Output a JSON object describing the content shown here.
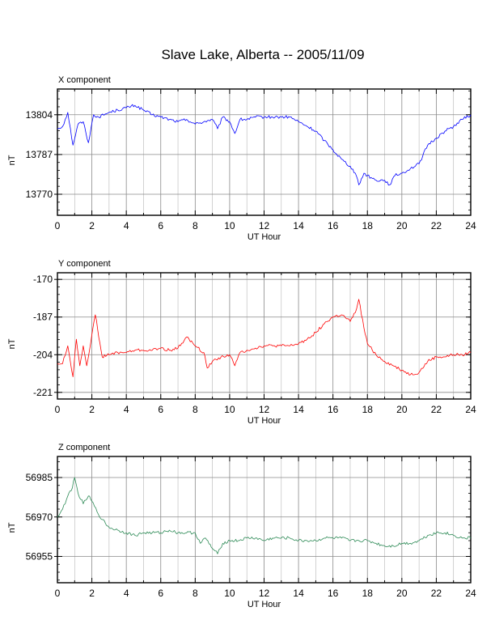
{
  "title": "Slave Lake, Alberta -- 2005/11/09",
  "chart_data": [
    {
      "type": "line",
      "panel_title": "X component",
      "xlabel": "UT Hour",
      "ylabel": "nT",
      "xlim": [
        0,
        24
      ],
      "ylim": [
        13761,
        13815
      ],
      "xticks": [
        0,
        2,
        4,
        6,
        8,
        10,
        12,
        14,
        16,
        18,
        20,
        22,
        24
      ],
      "yticks": [
        13770,
        13787,
        13804
      ],
      "grid": true,
      "color": "#0000ff",
      "x": [
        0,
        0.3,
        0.6,
        0.9,
        1.2,
        1.5,
        1.8,
        2.1,
        2.4,
        3,
        3.5,
        4,
        4.5,
        5,
        5.5,
        6,
        6.5,
        7,
        7.5,
        8,
        8.5,
        9,
        9.3,
        9.6,
        10,
        10.3,
        10.6,
        11,
        11.5,
        12,
        12.5,
        13,
        13.5,
        14,
        14.5,
        15,
        15.5,
        16,
        16.5,
        17,
        17.3,
        17.5,
        17.8,
        18,
        18.5,
        19,
        19.3,
        19.6,
        20,
        20.5,
        21,
        21.5,
        22,
        22.5,
        23,
        23.5,
        24
      ],
      "y": [
        13798,
        13799,
        13805,
        13791,
        13800,
        13801,
        13792,
        13804,
        13803,
        13805,
        13806,
        13807,
        13808,
        13806,
        13804,
        13803,
        13802,
        13801,
        13802,
        13800,
        13801,
        13802,
        13798,
        13803,
        13801,
        13796,
        13802,
        13802,
        13803,
        13803,
        13803,
        13803,
        13803,
        13801,
        13799,
        13797,
        13793,
        13789,
        13785,
        13782,
        13779,
        13774,
        13779,
        13778,
        13776,
        13776,
        13774,
        13778,
        13779,
        13781,
        13783,
        13791,
        13794,
        13797,
        13799,
        13802,
        13804
      ]
    },
    {
      "type": "line",
      "panel_title": "Y component",
      "xlabel": "UT Hour",
      "ylabel": "nT",
      "xlim": [
        0,
        24
      ],
      "ylim": [
        -224,
        -167
      ],
      "xticks": [
        0,
        2,
        4,
        6,
        8,
        10,
        12,
        14,
        16,
        18,
        20,
        22,
        24
      ],
      "yticks": [
        -170,
        -187,
        -204,
        -221
      ],
      "grid": true,
      "color": "#ff0000",
      "x": [
        0,
        0.3,
        0.6,
        0.9,
        1.1,
        1.3,
        1.5,
        1.7,
        2,
        2.2,
        2.6,
        3,
        3.5,
        4,
        4.5,
        5,
        5.5,
        6,
        6.5,
        7,
        7.5,
        8,
        8.5,
        8.7,
        9,
        9.5,
        10,
        10.3,
        10.6,
        11,
        11.5,
        12,
        12.5,
        13,
        13.5,
        14,
        14.5,
        15,
        15.5,
        16,
        16.5,
        17,
        17.3,
        17.5,
        17.8,
        18,
        18.5,
        19,
        19.5,
        20,
        20.5,
        21,
        21.5,
        22,
        22.5,
        23,
        23.5,
        24
      ],
      "y": [
        -208,
        -208,
        -200,
        -214,
        -197,
        -209,
        -200,
        -209,
        -195,
        -186,
        -205,
        -204,
        -203,
        -203,
        -202,
        -202,
        -202,
        -201,
        -202,
        -201,
        -196,
        -200,
        -203,
        -210,
        -207,
        -205,
        -204,
        -209,
        -203,
        -202,
        -201,
        -200,
        -200,
        -200,
        -200,
        -199,
        -197,
        -194,
        -190,
        -187,
        -186,
        -189,
        -185,
        -179,
        -192,
        -199,
        -204,
        -207,
        -209,
        -211,
        -213,
        -212,
        -207,
        -205,
        -205,
        -204,
        -204,
        -203
      ]
    },
    {
      "type": "line",
      "panel_title": "Z component",
      "xlabel": "UT Hour",
      "ylabel": "nT",
      "xlim": [
        0,
        24
      ],
      "ylim": [
        56945,
        56993
      ],
      "xticks": [
        0,
        2,
        4,
        6,
        8,
        10,
        12,
        14,
        16,
        18,
        20,
        22,
        24
      ],
      "yticks": [
        56955,
        56970,
        56985
      ],
      "grid": true,
      "color": "#2e8b57",
      "x": [
        0,
        0.3,
        0.6,
        0.8,
        1,
        1.2,
        1.5,
        1.8,
        2,
        2.3,
        2.6,
        3,
        3.5,
        4,
        4.5,
        5,
        5.5,
        6,
        6.5,
        7,
        7.5,
        8,
        8.3,
        8.6,
        9,
        9.3,
        9.6,
        10,
        10.5,
        11,
        11.5,
        12,
        12.5,
        13,
        13.5,
        14,
        14.5,
        15,
        15.5,
        16,
        16.5,
        17,
        17.5,
        18,
        18.5,
        19,
        19.5,
        20,
        20.5,
        21,
        21.5,
        22,
        22.5,
        23,
        23.5,
        24
      ],
      "y": [
        56970,
        56973,
        56978,
        56980,
        56985,
        56979,
        56975,
        56978,
        56976,
        56972,
        56969,
        56966,
        56965,
        56964,
        56963,
        56964,
        56964,
        56964,
        56965,
        56964,
        56964,
        56964,
        56960,
        56962,
        56958,
        56956,
        56960,
        56961,
        56961,
        56962,
        56962,
        56961,
        56962,
        56962,
        56962,
        56961,
        56961,
        56961,
        56962,
        56962,
        56962,
        56961,
        56961,
        56961,
        56960,
        56959,
        56959,
        56960,
        56960,
        56961,
        56963,
        56964,
        56964,
        56963,
        56962,
        56962
      ]
    }
  ]
}
